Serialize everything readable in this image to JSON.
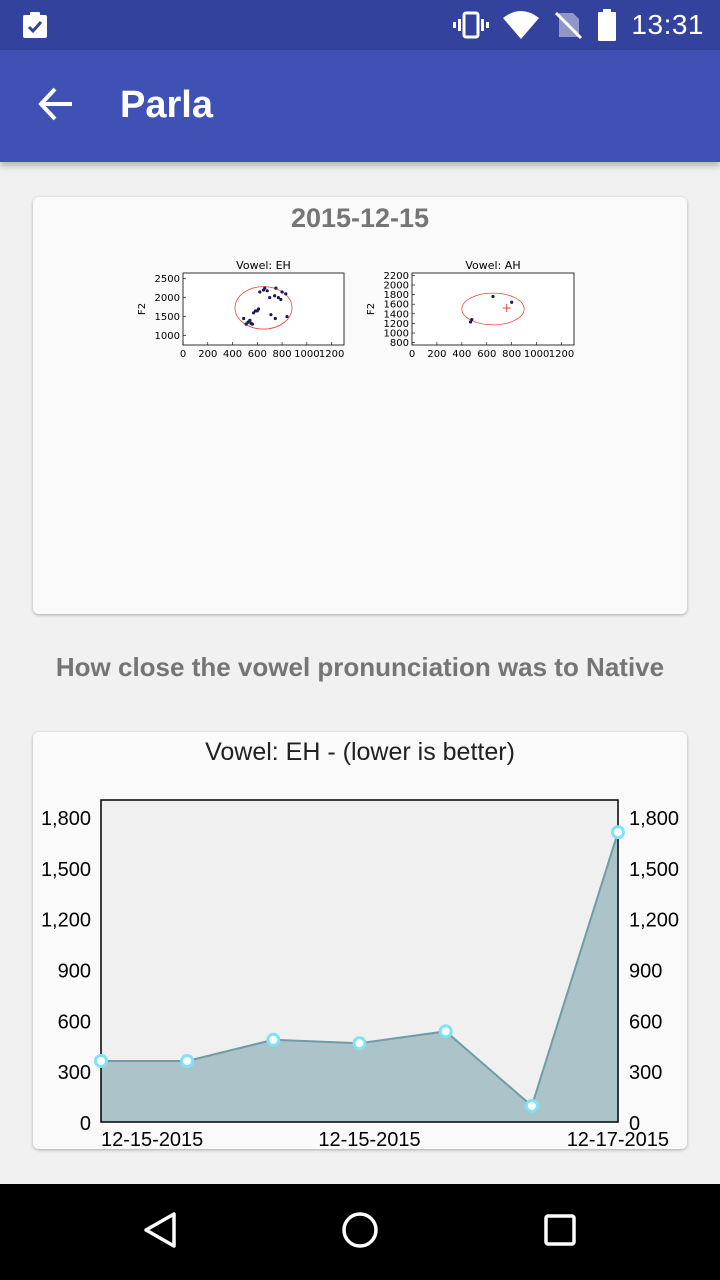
{
  "status_bar": {
    "time": "13:31",
    "icons": [
      "clipboard-check-icon",
      "vibrate-icon",
      "wifi-icon",
      "no-sim-icon",
      "battery-icon"
    ]
  },
  "app_bar": {
    "title": "Parla",
    "back_icon": "arrow-left-icon"
  },
  "session_card": {
    "date": "2015-12-15",
    "plots": [
      {
        "title": "Vowel: EH",
        "ylabel": "F2",
        "xticks": [
          "0",
          "200",
          "400",
          "600",
          "800",
          "1000",
          "1200"
        ],
        "yticks": [
          "1000",
          "1500",
          "2000",
          "2500"
        ],
        "points": [
          [
            490,
            1450
          ],
          [
            510,
            1300
          ],
          [
            525,
            1350
          ],
          [
            540,
            1400
          ],
          [
            550,
            1320
          ],
          [
            560,
            1300
          ],
          [
            570,
            1600
          ],
          [
            585,
            1650
          ],
          [
            600,
            1650
          ],
          [
            610,
            1700
          ],
          [
            620,
            2150
          ],
          [
            650,
            2200
          ],
          [
            660,
            2250
          ],
          [
            680,
            2180
          ],
          [
            700,
            2000
          ],
          [
            710,
            1550
          ],
          [
            740,
            2050
          ],
          [
            745,
            1450
          ],
          [
            750,
            2250
          ],
          [
            770,
            2000
          ],
          [
            790,
            1950
          ],
          [
            800,
            2150
          ],
          [
            830,
            2100
          ],
          [
            840,
            1500
          ]
        ],
        "ellipse": {
          "cx": 650,
          "cy": 1730,
          "rx": 230,
          "ry": 560
        }
      },
      {
        "title": "Vowel: AH",
        "ylabel": "F2",
        "xticks": [
          "0",
          "200",
          "400",
          "600",
          "800",
          "1000",
          "1200"
        ],
        "yticks": [
          "800",
          "1000",
          "1200",
          "1400",
          "1600",
          "1800",
          "2000",
          "2200"
        ],
        "points": [
          [
            470,
            1230
          ],
          [
            480,
            1280
          ],
          [
            650,
            1760
          ],
          [
            800,
            1640
          ]
        ],
        "ellipse": {
          "cx": 650,
          "cy": 1500,
          "rx": 250,
          "ry": 330
        },
        "marker": [
          760,
          1520
        ]
      }
    ]
  },
  "section_heading": "How close the vowel pronunciation was to Native",
  "chart_data": {
    "type": "area",
    "title": "Vowel: EH - (lower is better)",
    "xlabels": [
      "12-15-2015",
      "12-15-2015",
      "12-17-2015"
    ],
    "values": [
      360,
      360,
      485,
      465,
      535,
      95,
      1710
    ],
    "ylim": [
      0,
      1900
    ],
    "yticks": [
      "0",
      "300",
      "600",
      "900",
      "1,200",
      "1,500",
      "1,800"
    ],
    "colors": {
      "fill": "#abc3c9",
      "line": "#6f9ca7",
      "marker": "#7ee3f5"
    }
  },
  "nav_bar": {
    "icons": [
      "back-triangle-icon",
      "home-circle-icon",
      "recents-square-icon"
    ]
  }
}
